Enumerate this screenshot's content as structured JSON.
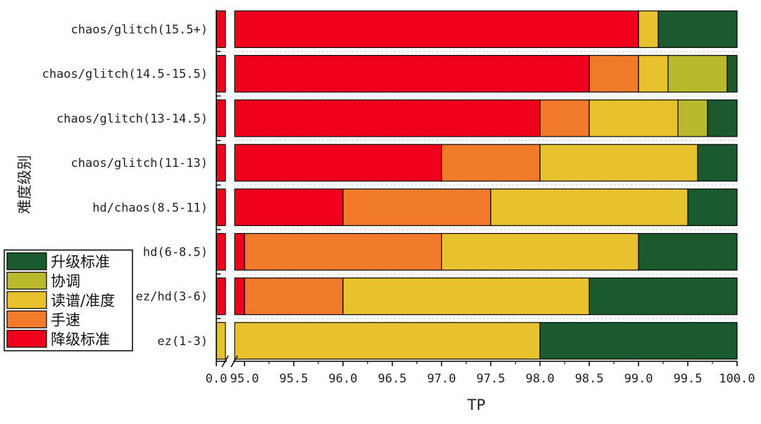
{
  "chart_data": {
    "type": "bar",
    "orientation": "horizontal",
    "stacked": true,
    "xlabel": "TP",
    "ylabel": "难度级别",
    "xlim": [
      0,
      100
    ],
    "axis_break": [
      0.1,
      94.9
    ],
    "x_ticks": [
      "0.0",
      "95.0",
      "95.5",
      "96.0",
      "96.5",
      "97.0",
      "97.5",
      "98.0",
      "98.5",
      "99.0",
      "99.5",
      "100.0"
    ],
    "categories": [
      "chaos/glitch(15.5+)",
      "chaos/glitch(14.5-15.5)",
      "chaos/glitch(13-14.5)",
      "chaos/glitch(11-13)",
      "hd/chaos(8.5-11)",
      "hd(6-8.5)",
      "ez/hd(3-6)",
      "ez(1-3)"
    ],
    "boundaries": [
      [
        99.0,
        99.0,
        99.2,
        99.2
      ],
      [
        98.5,
        99.0,
        99.3,
        99.9
      ],
      [
        98.0,
        98.5,
        99.4,
        99.7
      ],
      [
        97.0,
        98.0,
        99.6,
        99.6
      ],
      [
        96.0,
        97.5,
        99.5,
        99.5
      ],
      [
        95.0,
        97.0,
        99.0,
        99.0
      ],
      [
        95.0,
        96.0,
        98.5,
        98.5
      ],
      [
        0.0,
        0.0,
        98.0,
        98.0
      ]
    ],
    "series": [
      {
        "name": "降级标准",
        "color": "#f0001c"
      },
      {
        "name": "手速",
        "color": "#f27a2b"
      },
      {
        "name": "读谱/准度",
        "color": "#e8c12e"
      },
      {
        "name": "协调",
        "color": "#b8b92c"
      },
      {
        "name": "升级标准",
        "color": "#1a5a2e"
      }
    ],
    "legend": {
      "placement": "left",
      "entries": [
        {
          "label": "升级标准",
          "color": "#1a5a2e"
        },
        {
          "label": "协调",
          "color": "#b8b92c"
        },
        {
          "label": "读谱/准度",
          "color": "#e8c12e"
        },
        {
          "label": "手速",
          "color": "#f27a2b"
        },
        {
          "label": "降级标准",
          "color": "#f0001c"
        }
      ]
    },
    "grid": "horizontal dashed"
  }
}
